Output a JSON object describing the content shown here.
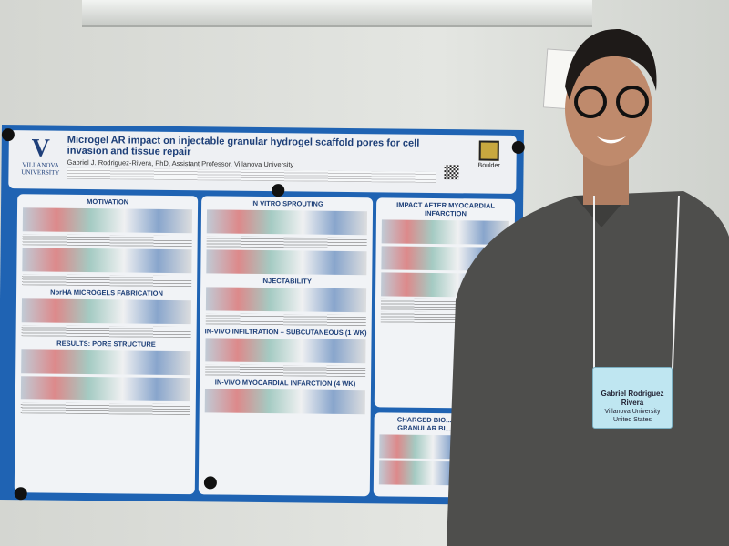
{
  "poster": {
    "title": "Microgel AR impact on injectable granular hydrogel scaffold pores for cell invasion and tissue repair",
    "author": "Gabriel J. Rodriguez-Rivera, PhD, Assistant Professor, Villanova University",
    "left_logo": {
      "mark": "V",
      "text": "VILLANOVA UNIVERSITY"
    },
    "right_logo": {
      "text": "Boulder"
    },
    "sections": {
      "motivation": "MOTIVATION",
      "fabrication": "NorHA MICROGELS FABRICATION",
      "pore": "RESULTS: PORE STRUCTURE",
      "sprouting": "IN VITRO SPROUTING",
      "injectability": "INJECTABILITY",
      "infiltration": "IN-VIVO INFILTRATION – SUBCUTANEOUS (1 WK)",
      "mi4wk": "IN-VIVO MYOCARDIAL INFARCTION (4 WK)",
      "impact": "IMPACT AFTER MYOCARDIAL INFARCTION",
      "charged": "CHARGED BIO... GRANULAR BI..."
    }
  },
  "badge": {
    "name": "Gabriel Rodriguez Rivera",
    "org": "Villanova University",
    "country": "United States"
  }
}
